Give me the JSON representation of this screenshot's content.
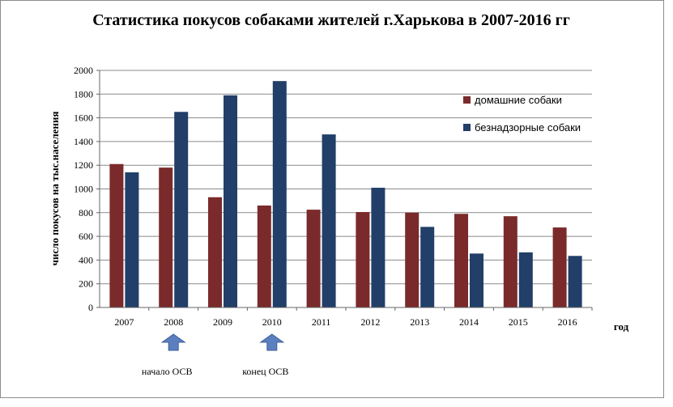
{
  "chart_data": {
    "type": "bar",
    "title": "Статистика покусов собаками жителей г.Харькова в 2007-2016 гг",
    "xlabel": "год",
    "ylabel": "число покусов на тыс.населения",
    "categories": [
      "2007",
      "2008",
      "2009",
      "2010",
      "2011",
      "2012",
      "2013",
      "2014",
      "2015",
      "2016"
    ],
    "series": [
      {
        "name": "домашние собаки",
        "color": "#7a2a2a",
        "values": [
          1210,
          1180,
          930,
          860,
          825,
          805,
          800,
          790,
          770,
          675
        ]
      },
      {
        "name": "безнадзорные собаки",
        "color": "#213f68",
        "values": [
          1140,
          1650,
          1790,
          1910,
          1460,
          1010,
          680,
          455,
          465,
          435
        ]
      }
    ],
    "ylim": [
      0,
      2000
    ],
    "yticks": [
      "0",
      "200",
      "400",
      "600",
      "800",
      "1000",
      "1200",
      "1400",
      "1600",
      "1800",
      "2000"
    ],
    "grid": true,
    "legend_position": "top-right",
    "annotations": [
      {
        "category": "2008",
        "text": "начало ОСВ",
        "marker": "up-arrow",
        "color": "#5b7fbf"
      },
      {
        "category": "2010",
        "text": "конец ОСВ",
        "marker": "up-arrow",
        "color": "#5b7fbf"
      }
    ]
  }
}
